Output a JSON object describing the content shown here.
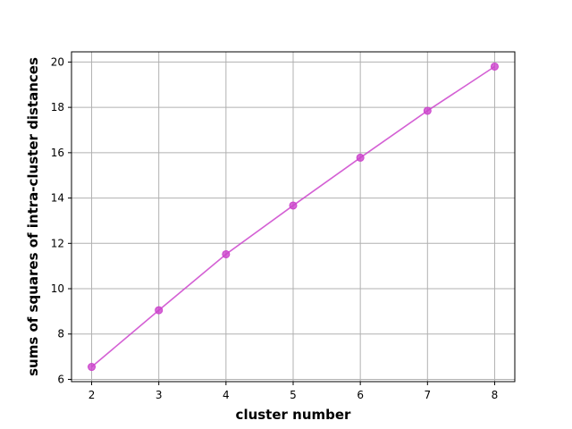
{
  "chart_data": {
    "type": "line",
    "x": [
      2,
      3,
      4,
      5,
      6,
      7,
      8
    ],
    "series": [
      {
        "values": [
          6.55,
          9.05,
          11.52,
          13.67,
          15.78,
          17.85,
          19.8
        ],
        "color": "#cc44cc",
        "marker": "circle"
      }
    ],
    "xlabel": "cluster number",
    "ylabel": "sums of squares of intra-cluster distances",
    "xlim": [
      1.7,
      8.3
    ],
    "ylim": [
      5.9,
      20.45
    ],
    "xticks": [
      2,
      3,
      4,
      5,
      6,
      7,
      8
    ],
    "yticks": [
      6,
      8,
      10,
      12,
      14,
      16,
      18,
      20
    ],
    "grid": true
  }
}
